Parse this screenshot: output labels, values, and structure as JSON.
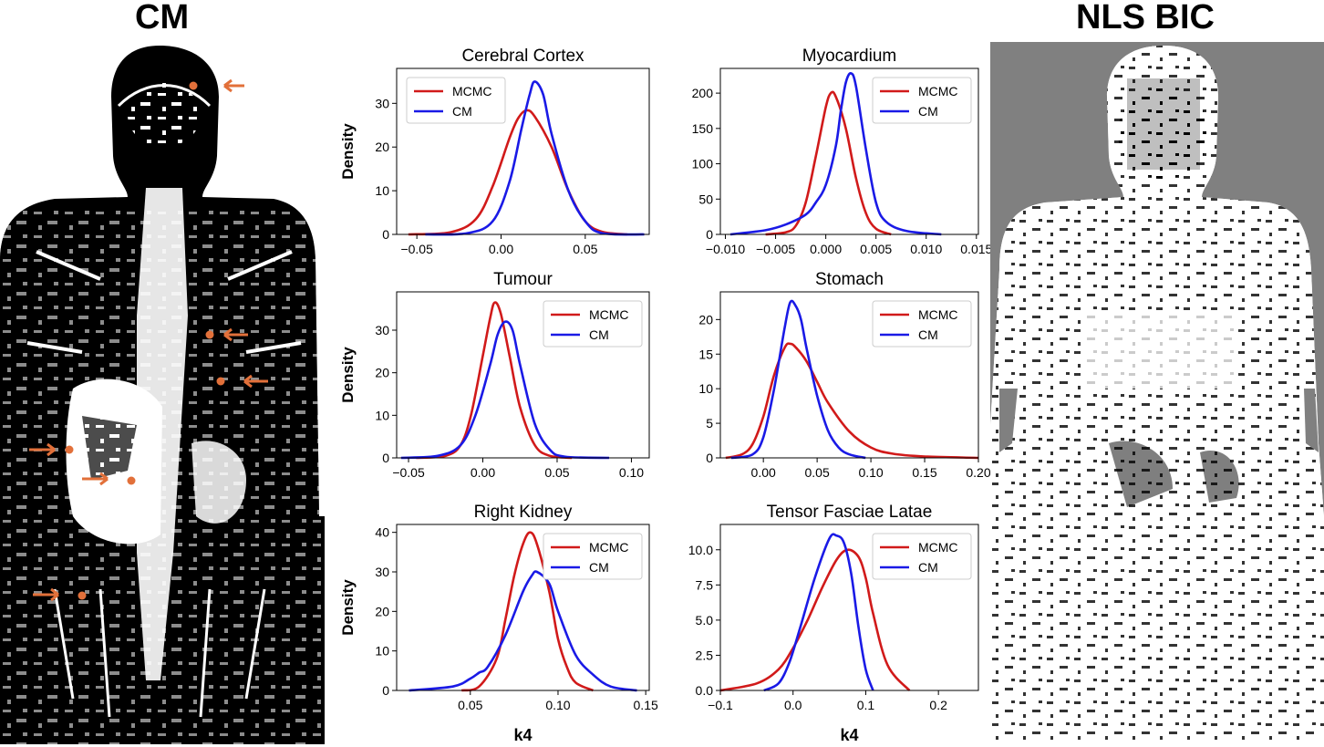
{
  "left_panel": {
    "title": "CM"
  },
  "right_panel": {
    "title": "NLS BIC"
  },
  "colors": {
    "mcmc": "#d11a1a",
    "cm": "#1a1ae6",
    "arrow": "#e2703a",
    "mask_bg_right": "#808080"
  },
  "chart_data": [
    {
      "type": "line",
      "title": "Cerebral Cortex",
      "ylabel": "Density",
      "xlabel": "",
      "xlim": [
        -0.062,
        0.088
      ],
      "ylim": [
        0,
        38
      ],
      "xticks": [
        -0.05,
        0.0,
        0.05
      ],
      "xtick_labels": [
        "−0.05",
        "0.00",
        "0.05"
      ],
      "yticks": [
        0,
        10,
        20,
        30
      ],
      "ytick_labels": [
        "0",
        "10",
        "20",
        "30"
      ],
      "legend": "top-left",
      "series": [
        {
          "name": "MCMC",
          "x": [
            -0.055,
            -0.03,
            -0.015,
            -0.005,
            0.005,
            0.01,
            0.015,
            0.02,
            0.03,
            0.04,
            0.05,
            0.06,
            0.075
          ],
          "y": [
            0,
            0.5,
            3.5,
            11,
            22,
            26.5,
            28.4,
            27,
            20,
            10,
            3,
            0.6,
            0
          ]
        },
        {
          "name": "CM",
          "x": [
            -0.045,
            -0.02,
            -0.005,
            0.005,
            0.012,
            0.017,
            0.02,
            0.025,
            0.03,
            0.04,
            0.05,
            0.06,
            0.085
          ],
          "y": [
            0,
            0.3,
            3,
            12,
            24,
            32,
            35,
            32,
            23,
            10,
            3,
            0.3,
            0
          ]
        }
      ]
    },
    {
      "type": "line",
      "title": "Myocardium",
      "ylabel": "",
      "xlabel": "",
      "xlim": [
        -0.0105,
        0.0152
      ],
      "ylim": [
        0,
        235
      ],
      "xticks": [
        -0.01,
        -0.005,
        0.0,
        0.005,
        0.01,
        0.015
      ],
      "xtick_labels": [
        "−0.010",
        "−0.005",
        "0.000",
        "0.005",
        "0.010",
        "0.015"
      ],
      "yticks": [
        0,
        50,
        100,
        150,
        200
      ],
      "ytick_labels": [
        "0",
        "50",
        "100",
        "150",
        "200"
      ],
      "legend": "top-right",
      "series": [
        {
          "name": "MCMC",
          "x": [
            -0.006,
            -0.004,
            -0.003,
            -0.002,
            -0.001,
            0,
            0.0005,
            0.001,
            0.002,
            0.003,
            0.004,
            0.005,
            0.0065
          ],
          "y": [
            0,
            3,
            12,
            45,
            110,
            180,
            200,
            195,
            150,
            80,
            30,
            8,
            0
          ]
        },
        {
          "name": "CM",
          "x": [
            -0.0095,
            -0.006,
            -0.004,
            -0.002,
            -0.001,
            0,
            0.001,
            0.0015,
            0.002,
            0.0025,
            0.003,
            0.004,
            0.005,
            0.006,
            0.008,
            0.0115
          ],
          "y": [
            0,
            6,
            14,
            28,
            45,
            70,
            125,
            175,
            215,
            228,
            210,
            120,
            45,
            18,
            5,
            0
          ]
        }
      ]
    },
    {
      "type": "line",
      "title": "Tumour",
      "ylabel": "Density",
      "xlabel": "",
      "xlim": [
        -0.058,
        0.112
      ],
      "ylim": [
        0,
        39
      ],
      "xticks": [
        -0.05,
        0.0,
        0.05,
        0.1
      ],
      "xtick_labels": [
        "−0.05",
        "0.00",
        "0.05",
        "0.10"
      ],
      "yticks": [
        0,
        10,
        20,
        30
      ],
      "ytick_labels": [
        "0",
        "10",
        "20",
        "30"
      ],
      "legend": "top-right",
      "series": [
        {
          "name": "MCMC",
          "x": [
            -0.045,
            -0.025,
            -0.015,
            -0.008,
            0,
            0.005,
            0.008,
            0.012,
            0.018,
            0.025,
            0.035,
            0.045,
            0.06
          ],
          "y": [
            0,
            0.5,
            3,
            10,
            24,
            33,
            36.5,
            34,
            24,
            12,
            3,
            0.5,
            0
          ]
        },
        {
          "name": "CM",
          "x": [
            -0.055,
            -0.03,
            -0.015,
            -0.005,
            0.005,
            0.01,
            0.015,
            0.02,
            0.025,
            0.035,
            0.045,
            0.055,
            0.085
          ],
          "y": [
            0,
            0.5,
            3,
            10,
            22,
            29,
            32,
            30,
            22,
            8,
            2,
            0.3,
            0
          ]
        }
      ]
    },
    {
      "type": "line",
      "title": "Stomach",
      "ylabel": "",
      "xlabel": "",
      "xlim": [
        -0.04,
        0.2
      ],
      "ylim": [
        0,
        24
      ],
      "xticks": [
        0.0,
        0.05,
        0.1,
        0.15,
        0.2
      ],
      "xtick_labels": [
        "0.00",
        "0.05",
        "0.10",
        "0.15",
        "0.20"
      ],
      "yticks": [
        0,
        5,
        10,
        15,
        20
      ],
      "ytick_labels": [
        "0",
        "5",
        "10",
        "15",
        "20"
      ],
      "legend": "top-right",
      "series": [
        {
          "name": "MCMC",
          "x": [
            -0.035,
            -0.02,
            -0.01,
            0,
            0.01,
            0.02,
            0.025,
            0.03,
            0.04,
            0.05,
            0.06,
            0.08,
            0.1,
            0.12,
            0.15,
            0.2
          ],
          "y": [
            0,
            0.5,
            2,
            6,
            12,
            16,
            16.5,
            16,
            14,
            11,
            8,
            3.8,
            1.5,
            0.6,
            0.2,
            0
          ]
        },
        {
          "name": "CM",
          "x": [
            -0.03,
            -0.01,
            0,
            0.01,
            0.02,
            0.025,
            0.03,
            0.035,
            0.04,
            0.05,
            0.06,
            0.07,
            0.08,
            0.095
          ],
          "y": [
            0,
            0.5,
            3,
            10,
            19,
            22.5,
            22,
            20,
            16,
            9,
            4,
            1.5,
            0.5,
            0
          ]
        }
      ]
    },
    {
      "type": "line",
      "title": "Right Kidney",
      "ylabel": "Density",
      "xlabel": "k4",
      "xlim": [
        0.008,
        0.152
      ],
      "ylim": [
        0,
        42
      ],
      "xticks": [
        0.05,
        0.1,
        0.15
      ],
      "xtick_labels": [
        "0.05",
        "0.10",
        "0.15"
      ],
      "yticks": [
        0,
        10,
        20,
        30,
        40
      ],
      "ytick_labels": [
        "0",
        "10",
        "20",
        "30",
        "40"
      ],
      "legend": "top-right",
      "series": [
        {
          "name": "MCMC",
          "x": [
            0.045,
            0.055,
            0.065,
            0.07,
            0.075,
            0.08,
            0.084,
            0.088,
            0.095,
            0.1,
            0.105,
            0.11,
            0.12
          ],
          "y": [
            0,
            1,
            8,
            18,
            29,
            37,
            40,
            37,
            25,
            13,
            6,
            2,
            0
          ]
        },
        {
          "name": "CM",
          "x": [
            0.015,
            0.04,
            0.05,
            0.055,
            0.06,
            0.07,
            0.08,
            0.085,
            0.088,
            0.095,
            0.1,
            0.11,
            0.12,
            0.13,
            0.145
          ],
          "y": [
            0,
            1,
            3,
            4.5,
            6,
            14,
            25,
            29,
            30,
            27,
            20,
            9,
            4,
            1,
            0
          ]
        }
      ]
    },
    {
      "type": "line",
      "title": "Tensor Fasciae Latae",
      "ylabel": "",
      "xlabel": "k4",
      "xlim": [
        -0.1,
        0.255
      ],
      "ylim": [
        0,
        11.8
      ],
      "xticks": [
        -0.1,
        0.0,
        0.1,
        0.2
      ],
      "xtick_labels": [
        "−0.1",
        "0.0",
        "0.1",
        "0.2"
      ],
      "yticks": [
        0,
        2.5,
        5.0,
        7.5,
        10.0
      ],
      "ytick_labels": [
        "0.0",
        "2.5",
        "5.0",
        "7.5",
        "10.0"
      ],
      "legend": "top-right",
      "series": [
        {
          "name": "MCMC",
          "x": [
            -0.1,
            -0.05,
            -0.02,
            0,
            0.02,
            0.04,
            0.06,
            0.075,
            0.09,
            0.1,
            0.11,
            0.13,
            0.16
          ],
          "y": [
            0,
            0.5,
            1.5,
            3,
            5,
            7.3,
            9.3,
            10,
            9.5,
            8,
            5.5,
            1.8,
            0
          ]
        },
        {
          "name": "CM",
          "x": [
            -0.04,
            -0.02,
            -0.005,
            0.01,
            0.03,
            0.05,
            0.06,
            0.07,
            0.08,
            0.09,
            0.1,
            0.11
          ],
          "y": [
            0,
            0.5,
            2,
            4.5,
            8,
            10.8,
            11,
            10.5,
            8.3,
            4.5,
            1.5,
            0
          ]
        }
      ]
    }
  ]
}
